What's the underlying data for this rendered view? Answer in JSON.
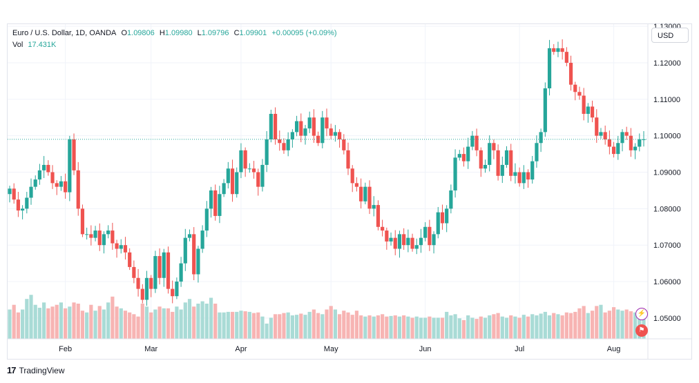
{
  "legend": {
    "symbol": "Euro / U.S. Dollar, 1D, OANDA",
    "o_label": "O",
    "o_value": "1.09806",
    "h_label": "H",
    "h_value": "1.09980",
    "l_label": "L",
    "l_value": "1.09796",
    "c_label": "C",
    "c_value": "1.09901",
    "change": "+0.00095 (+0.09%)",
    "vol_label": "Vol",
    "vol_value": "17.431K"
  },
  "currency_button": "USD",
  "branding": {
    "name": "TradingView",
    "logo": "17"
  },
  "colors": {
    "up": "#26a69a",
    "down": "#ef5350",
    "vol_up": "#a9dbd6",
    "vol_down": "#f7b4b3",
    "grid": "#f0f3fa"
  },
  "icons": [
    "lightning-icon",
    "flag-icon"
  ],
  "chart_data": {
    "type": "candlestick",
    "symbol": "Euro / U.S. Dollar, 1D, OANDA",
    "x_ticks": [
      "Feb",
      "Mar",
      "Apr",
      "May",
      "Jun",
      "Jul",
      "Aug"
    ],
    "y_ticks": [
      "1.13000",
      "1.12000",
      "1.11000",
      "1.10000",
      "1.09000",
      "1.08000",
      "1.07000",
      "1.06000",
      "1.05000"
    ],
    "ylim": [
      1.0443,
      1.1306
    ],
    "last_price": 1.09901,
    "grid": true,
    "closes": [
      1.0855,
      1.0825,
      1.0795,
      1.08,
      1.083,
      1.086,
      1.088,
      1.0905,
      1.092,
      1.09,
      1.087,
      1.086,
      1.0875,
      1.0845,
      1.099,
      1.0905,
      1.08,
      1.073,
      1.073,
      1.072,
      1.074,
      1.07,
      1.073,
      1.074,
      1.0705,
      1.069,
      1.07,
      1.068,
      1.064,
      1.061,
      1.058,
      1.055,
      1.061,
      1.058,
      1.067,
      1.061,
      1.068,
      1.058,
      1.056,
      1.06,
      1.065,
      1.072,
      1.073,
      1.062,
      1.069,
      1.074,
      1.08,
      1.085,
      1.078,
      1.084,
      1.087,
      1.091,
      1.084,
      1.09,
      1.096,
      1.091,
      1.091,
      1.09,
      1.086,
      1.092,
      1.099,
      1.106,
      1.099,
      1.098,
      1.096,
      1.099,
      1.101,
      1.104,
      1.1,
      1.102,
      1.105,
      1.1,
      1.098,
      1.105,
      1.102,
      1.1,
      1.101,
      1.099,
      1.096,
      1.091,
      1.087,
      1.086,
      1.082,
      1.086,
      1.08,
      1.081,
      1.075,
      1.074,
      1.071,
      1.072,
      1.069,
      1.073,
      1.07,
      1.072,
      1.069,
      1.07,
      1.072,
      1.075,
      1.07,
      1.073,
      1.079,
      1.076,
      1.08,
      1.085,
      1.094,
      1.095,
      1.093,
      1.097,
      1.1,
      1.096,
      1.091,
      1.092,
      1.098,
      1.096,
      1.089,
      1.092,
      1.096,
      1.089,
      1.09,
      1.087,
      1.09,
      1.088,
      1.093,
      1.098,
      1.101,
      1.113,
      1.124,
      1.123,
      1.124,
      1.123,
      1.12,
      1.114,
      1.112,
      1.111,
      1.106,
      1.108,
      1.105,
      1.1,
      1.101,
      1.099,
      1.097,
      1.095,
      1.098,
      1.101,
      1.1,
      1.096,
      1.097,
      1.099,
      1.099
    ],
    "volume_relative": [
      0.5,
      0.58,
      0.45,
      0.5,
      0.68,
      0.75,
      0.58,
      0.53,
      0.62,
      0.52,
      0.55,
      0.58,
      0.62,
      0.52,
      0.55,
      0.62,
      0.6,
      0.48,
      0.45,
      0.58,
      0.48,
      0.56,
      0.5,
      0.62,
      0.72,
      0.55,
      0.52,
      0.48,
      0.45,
      0.42,
      0.38,
      0.6,
      0.55,
      0.45,
      0.5,
      0.55,
      0.52,
      0.52,
      0.46,
      0.55,
      0.5,
      0.62,
      0.68,
      0.55,
      0.6,
      0.64,
      0.6,
      0.7,
      0.6,
      0.45,
      0.45,
      0.46,
      0.46,
      0.46,
      0.48,
      0.47,
      0.46,
      0.44,
      0.45,
      0.38,
      0.26,
      0.36,
      0.42,
      0.42,
      0.44,
      0.45,
      0.4,
      0.41,
      0.43,
      0.41,
      0.46,
      0.5,
      0.44,
      0.42,
      0.5,
      0.56,
      0.5,
      0.42,
      0.48,
      0.45,
      0.41,
      0.48,
      0.4,
      0.38,
      0.4,
      0.38,
      0.4,
      0.42,
      0.38,
      0.39,
      0.4,
      0.38,
      0.4,
      0.38,
      0.36,
      0.38,
      0.36,
      0.36,
      0.38,
      0.36,
      0.36,
      0.36,
      0.46,
      0.4,
      0.42,
      0.35,
      0.32,
      0.4,
      0.36,
      0.34,
      0.38,
      0.36,
      0.4,
      0.42,
      0.44,
      0.38,
      0.36,
      0.4,
      0.38,
      0.36,
      0.41,
      0.38,
      0.42,
      0.4,
      0.43,
      0.46,
      0.4,
      0.44,
      0.42,
      0.4,
      0.45,
      0.44,
      0.46,
      0.52,
      0.56,
      0.44,
      0.48,
      0.56,
      0.58,
      0.45,
      0.48,
      0.54,
      0.5,
      0.48,
      0.5,
      0.47,
      0.45,
      0.43,
      0.44
    ]
  }
}
